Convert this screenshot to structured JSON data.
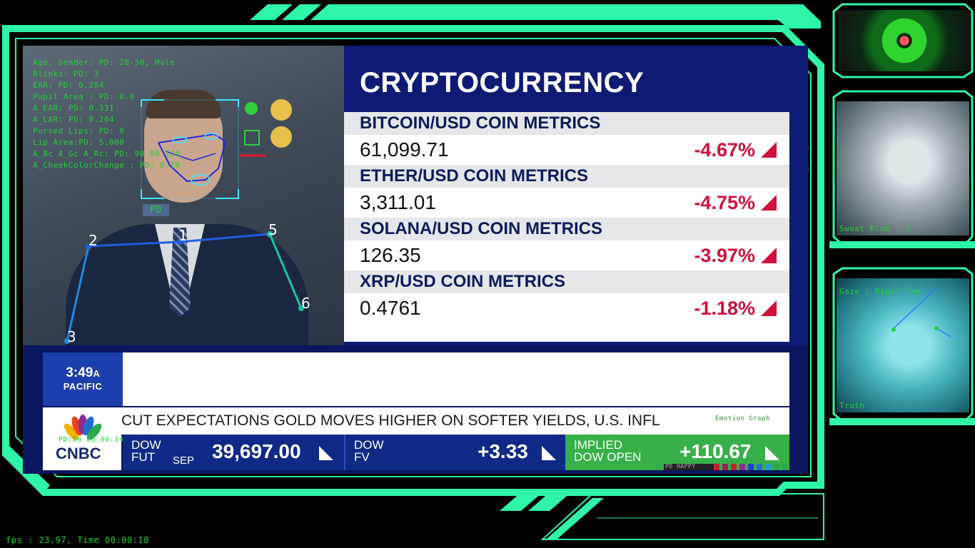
{
  "hud": {
    "accent_color": "#2ff5a8",
    "text_color": "#23d135",
    "metrics": [
      "Age, Gender:  PD: 28-30, Male",
      "Blinks:  PD: 3",
      "EAR:  PD: 0.284",
      "Pupil Area :  PD: 0.0",
      "A_EAR:  PD: 0.331",
      "A_LAR:  PD: 0.204",
      "Pursed Lips:  PD: 0",
      "Lip Area:PD: 5.000",
      "A_Bc A_Gc A_Rc:  PD: 98 89 134",
      "A_CheekColorChange : PD: 0.19"
    ],
    "face_box_label": "PD",
    "pose_points": [
      "1",
      "2",
      "3",
      "5",
      "6"
    ],
    "mini_label": "PD:00 00:00:14",
    "graph_label": "Emotion Graph",
    "happy_label": "PD HAPPY",
    "fps_text": "fps : 23.97, Time 00:00:18"
  },
  "broadcast": {
    "title": "CRYPTOCURRENCY",
    "coins": [
      {
        "label": "BITCOIN/USD COIN METRICS",
        "value": "61,099.71",
        "change": "-4.67%"
      },
      {
        "label": "ETHER/USD COIN METRICS",
        "value": "3,311.01",
        "change": "-4.75%"
      },
      {
        "label": "SOLANA/USD COIN METRICS",
        "value": "126.35",
        "change": "-3.97%"
      },
      {
        "label": "XRP/USD COIN METRICS",
        "value": "0.4761",
        "change": "-1.18%"
      }
    ],
    "time": "3:49",
    "time_suffix": "A",
    "timezone": "PACIFIC",
    "ticker": "CUT EXPECTATIONS     GOLD MOVES HIGHER ON SOFTER YIELDS, U.S. INFL",
    "network": "CNBC",
    "markets": [
      {
        "name": "DOW",
        "name2": "FUT",
        "sub": "SEP",
        "value": "39,697.00"
      },
      {
        "name": "DOW",
        "name2": "FV",
        "sub": "",
        "value": "+3.33"
      },
      {
        "name": "IMPLIED",
        "name2": "DOW OPEN",
        "sub": "",
        "value": "+110.67"
      }
    ]
  },
  "side_panels": {
    "sweat": "Sweat Blob : 1",
    "gaze": "Gaze : Right Top",
    "truth": "Truth"
  }
}
